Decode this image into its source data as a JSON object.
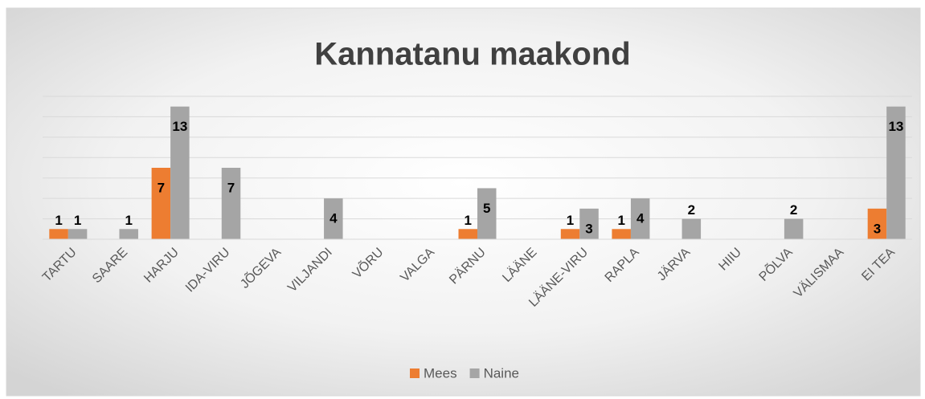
{
  "chart_data": {
    "type": "bar",
    "title": "Kannatanu maakond",
    "categories": [
      "TARTU",
      "SAARE",
      "HARJU",
      "IDA-VIRU",
      "JÕGEVA",
      "VILJANDI",
      "VÕRU",
      "VALGA",
      "PÄRNU",
      "LÄÄNE",
      "LÄÄNE-VIRU",
      "RAPLA",
      "JÄRVA",
      "HIIU",
      "PÕLVA",
      "VÄLISMAA",
      "EI TEA"
    ],
    "series": [
      {
        "name": "Mees",
        "color": "#ed7d31",
        "values": [
          1,
          0,
          7,
          0,
          0,
          0,
          0,
          0,
          1,
          0,
          1,
          1,
          0,
          0,
          0,
          0,
          3
        ]
      },
      {
        "name": "Naine",
        "color": "#a5a5a5",
        "values": [
          1,
          1,
          13,
          7,
          0,
          4,
          0,
          0,
          5,
          0,
          3,
          4,
          2,
          0,
          2,
          0,
          13
        ]
      }
    ],
    "ylim": [
      0,
      14
    ],
    "yticks": [
      0,
      2,
      4,
      6,
      8,
      10,
      12,
      14
    ],
    "grid": true,
    "legend": "bottom"
  }
}
